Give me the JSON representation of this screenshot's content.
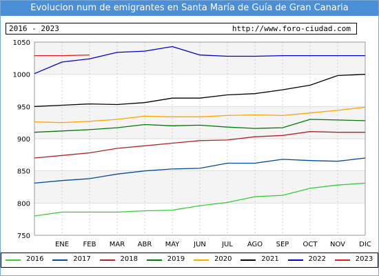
{
  "header": {
    "title": "Evolucion num de emigrantes en Santa María de Guía de Gran Canaria",
    "period": "2016 - 2023",
    "url": "http://www.foro-ciudad.com"
  },
  "chart_data": {
    "type": "line",
    "title": "Evolucion num de emigrantes en Santa María de Guía de Gran Canaria",
    "xlabel": "",
    "ylabel": "",
    "x": [
      "",
      "ENE",
      "FEB",
      "MAR",
      "ABR",
      "MAY",
      "JUN",
      "JUL",
      "AGO",
      "SEP",
      "OCT",
      "NOV",
      "DIC"
    ],
    "y_ticks": [
      750,
      800,
      850,
      900,
      950,
      1000,
      1050
    ],
    "ylim": [
      750,
      1050
    ],
    "grid": "horizontal",
    "legend_position": "bottom",
    "series": [
      {
        "name": "2016",
        "color": "#33cc33",
        "values": [
          780,
          786,
          786,
          786,
          788,
          789,
          796,
          801,
          810,
          812,
          823,
          828,
          831
        ]
      },
      {
        "name": "2017",
        "color": "#004a99",
        "values": [
          831,
          835,
          838,
          845,
          850,
          853,
          854,
          862,
          862,
          868,
          866,
          865,
          870
        ]
      },
      {
        "name": "2018",
        "color": "#b22222",
        "values": [
          870,
          874,
          878,
          885,
          889,
          893,
          897,
          898,
          903,
          905,
          911,
          910,
          910
        ]
      },
      {
        "name": "2019",
        "color": "#007a00",
        "values": [
          910,
          912,
          914,
          917,
          922,
          920,
          921,
          918,
          916,
          917,
          930,
          929,
          928
        ]
      },
      {
        "name": "2020",
        "color": "#ffa500",
        "values": [
          926,
          925,
          927,
          930,
          935,
          934,
          934,
          936,
          937,
          936,
          940,
          944,
          949
        ]
      },
      {
        "name": "2021",
        "color": "#000000",
        "values": [
          950,
          952,
          954,
          953,
          956,
          963,
          963,
          968,
          970,
          976,
          983,
          998,
          1000
        ]
      },
      {
        "name": "2022",
        "color": "#0000cc",
        "values": [
          1001,
          1019,
          1024,
          1034,
          1036,
          1043,
          1030,
          1028,
          1028,
          1029,
          1029,
          1029,
          1029
        ]
      },
      {
        "name": "2023",
        "color": "#e31a1c",
        "values": [
          1029,
          1029,
          1030,
          null,
          null,
          null,
          null,
          null,
          null,
          null,
          null,
          null,
          null
        ]
      }
    ]
  }
}
